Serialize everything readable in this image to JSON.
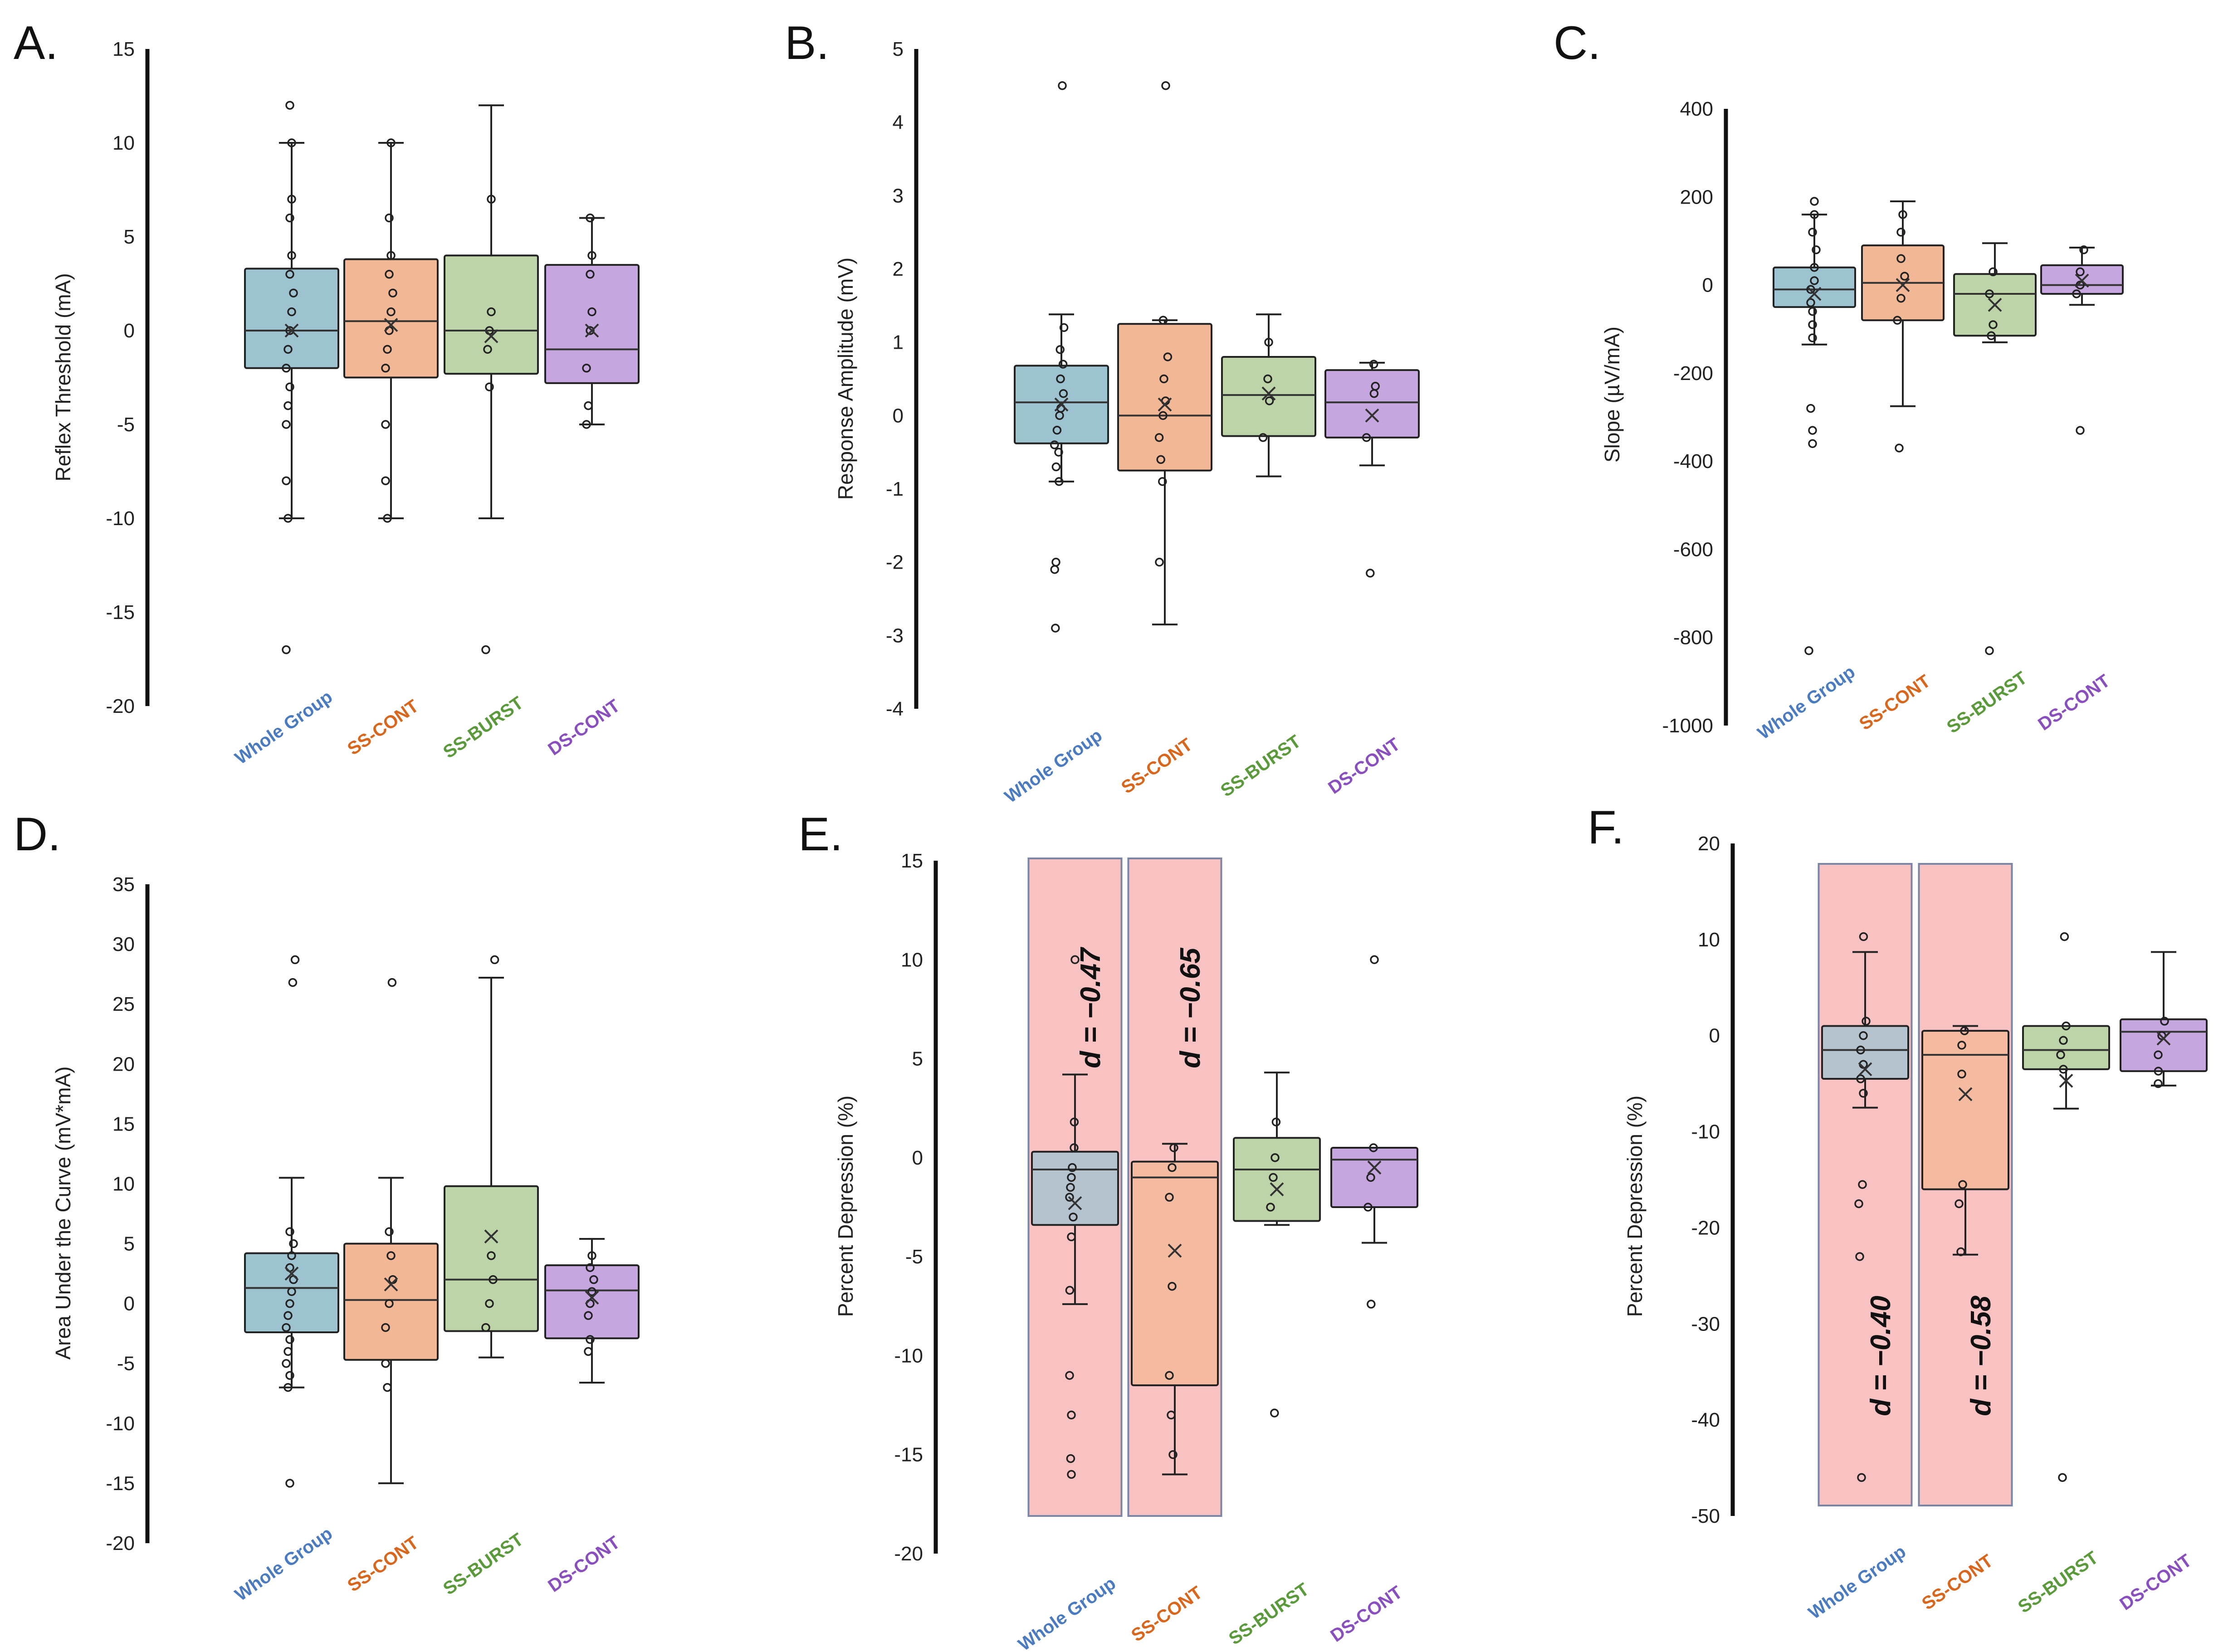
{
  "figure": {
    "categories": [
      "Whole Group",
      "SS-CONT",
      "SS-BURST",
      "DS-CONT"
    ],
    "colors": {
      "Whole Group": "#9dc3d1",
      "SS-CONT": "#f2b896",
      "SS-BURST": "#bcd4a8",
      "DS-CONT": "#c5a6de",
      "label_Whole Group": "#4a7bc1",
      "label_SS-CONT": "#d8661c",
      "label_SS-BURST": "#5a9a3a",
      "label_DS-CONT": "#8a4fbf",
      "highlight_fill": "#f9c2c2",
      "highlight_stroke": "#7b86a6",
      "box_stroke": "#222222"
    }
  },
  "chart_data": [
    {
      "panel": "A.",
      "type": "box",
      "ylabel": "Reflex Threshold  (mA)",
      "ylim": [
        -20,
        15
      ],
      "yticks": [
        15,
        10,
        5,
        0,
        -5,
        -10,
        -15,
        -20
      ],
      "groups": [
        {
          "name": "Whole Group",
          "q1": -2,
          "median": 0,
          "q3": 3.3,
          "mean": 0,
          "whisker_low": -10,
          "whisker_high": 10,
          "points": [
            12,
            10,
            7,
            6,
            4,
            3,
            2,
            1,
            0,
            -1,
            -2,
            -3,
            -4,
            -5,
            -8,
            -10,
            -17
          ]
        },
        {
          "name": "SS-CONT",
          "q1": -2.5,
          "median": 0.5,
          "q3": 3.8,
          "mean": 0.3,
          "whisker_low": -10,
          "whisker_high": 10,
          "points": [
            10,
            6,
            4,
            3,
            2,
            1,
            0,
            -1,
            -2,
            -5,
            -8,
            -10
          ]
        },
        {
          "name": "SS-BURST",
          "q1": -2.3,
          "median": 0,
          "q3": 4,
          "mean": -0.3,
          "whisker_low": -10,
          "whisker_high": 12,
          "points": [
            7,
            1,
            0,
            -1,
            -3,
            -17
          ]
        },
        {
          "name": "DS-CONT",
          "q1": -2.8,
          "median": -1,
          "q3": 3.5,
          "mean": 0,
          "whisker_low": -5,
          "whisker_high": 6,
          "points": [
            6,
            4,
            3,
            1,
            0,
            -2,
            -4,
            -5
          ]
        }
      ]
    },
    {
      "panel": "B.",
      "type": "box",
      "ylabel": "Response Amplitude  (mV)",
      "ylim": [
        -4,
        5
      ],
      "yticks": [
        5,
        4,
        3,
        2,
        1,
        0,
        -1,
        -2,
        -3,
        -4
      ],
      "groups": [
        {
          "name": "Whole Group",
          "q1": -0.38,
          "median": 0.18,
          "q3": 0.68,
          "mean": 0.15,
          "whisker_low": -0.9,
          "whisker_high": 1.38,
          "points": [
            4.5,
            1.2,
            0.9,
            0.7,
            0.5,
            0.3,
            0.1,
            0,
            -0.2,
            -0.4,
            -0.5,
            -0.7,
            -0.9,
            -2,
            -2.1,
            -2.9
          ]
        },
        {
          "name": "SS-CONT",
          "q1": -0.75,
          "median": 0,
          "q3": 1.25,
          "mean": 0.15,
          "whisker_low": -2.85,
          "whisker_high": 1.3,
          "points": [
            4.5,
            1.3,
            0.8,
            0.5,
            0.2,
            0,
            -0.3,
            -0.6,
            -0.9,
            -2
          ]
        },
        {
          "name": "SS-BURST",
          "q1": -0.28,
          "median": 0.28,
          "q3": 0.8,
          "mean": 0.3,
          "whisker_low": -0.83,
          "whisker_high": 1.38,
          "points": [
            1,
            0.5,
            0.2,
            -0.3
          ]
        },
        {
          "name": "DS-CONT",
          "q1": -0.3,
          "median": 0.18,
          "q3": 0.62,
          "mean": 0,
          "whisker_low": -0.68,
          "whisker_high": 0.72,
          "points": [
            0.7,
            0.4,
            0.3,
            -0.3,
            -2.15
          ]
        }
      ]
    },
    {
      "panel": "C.",
      "type": "box",
      "ylabel": "Slope  (µV/mA)",
      "ylim": [
        -1000,
        400
      ],
      "yticks": [
        400,
        200,
        0,
        -200,
        -400,
        -600,
        -800,
        -1000
      ],
      "groups": [
        {
          "name": "Whole Group",
          "q1": -50,
          "median": -10,
          "q3": 40,
          "mean": -20,
          "whisker_low": -135,
          "whisker_high": 160,
          "points": [
            190,
            160,
            120,
            80,
            40,
            10,
            -10,
            -40,
            -60,
            -90,
            -120,
            -280,
            -330,
            -360,
            -830
          ]
        },
        {
          "name": "SS-CONT",
          "q1": -80,
          "median": 5,
          "q3": 90,
          "mean": 0,
          "whisker_low": -275,
          "whisker_high": 190,
          "points": [
            160,
            120,
            60,
            20,
            -30,
            -80,
            -370
          ]
        },
        {
          "name": "SS-BURST",
          "q1": -115,
          "median": -20,
          "q3": 25,
          "mean": -45,
          "whisker_low": -130,
          "whisker_high": 95,
          "points": [
            30,
            -20,
            -90,
            -115,
            -830
          ]
        },
        {
          "name": "DS-CONT",
          "q1": -20,
          "median": 0,
          "q3": 45,
          "mean": 10,
          "whisker_low": -45,
          "whisker_high": 85,
          "points": [
            80,
            30,
            0,
            -20,
            -330
          ]
        }
      ]
    },
    {
      "panel": "D.",
      "type": "box",
      "ylabel": "Area Under the Curve  (mV*mA)",
      "ylim": [
        -20,
        35
      ],
      "yticks": [
        35,
        30,
        25,
        20,
        15,
        10,
        5,
        0,
        -5,
        -10,
        -15,
        -20
      ],
      "groups": [
        {
          "name": "Whole Group",
          "q1": -2.4,
          "median": 1.3,
          "q3": 4.2,
          "mean": 2.5,
          "whisker_low": -7,
          "whisker_high": 10.5,
          "points": [
            28.7,
            26.8,
            6,
            5,
            4,
            3,
            2,
            1,
            0,
            -1,
            -2,
            -3,
            -4,
            -5,
            -6,
            -7,
            -15
          ]
        },
        {
          "name": "SS-CONT",
          "q1": -4.7,
          "median": 0.3,
          "q3": 5,
          "mean": 1.6,
          "whisker_low": -15,
          "whisker_high": 10.5,
          "points": [
            26.8,
            6,
            4,
            2,
            0,
            -2,
            -5,
            -7
          ]
        },
        {
          "name": "SS-BURST",
          "q1": -2.3,
          "median": 2,
          "q3": 9.8,
          "mean": 5.6,
          "whisker_low": -4.5,
          "whisker_high": 27.2,
          "points": [
            28.7,
            4,
            2,
            0,
            -2
          ]
        },
        {
          "name": "DS-CONT",
          "q1": -2.9,
          "median": 1.1,
          "q3": 3.2,
          "mean": 0.5,
          "whisker_low": -6.6,
          "whisker_high": 5.4,
          "points": [
            4,
            3,
            2,
            1,
            0,
            -1,
            -3,
            -4
          ]
        }
      ]
    },
    {
      "panel": "E.",
      "type": "box",
      "ylabel": "Percent Depression (%)",
      "ylim": [
        -20,
        15
      ],
      "yticks": [
        15,
        10,
        5,
        0,
        -5,
        -10,
        -15,
        -20
      ],
      "highlight": [
        {
          "group": "Whole Group",
          "label": "d = −0.47"
        },
        {
          "group": "SS-CONT",
          "label": "d = −0.65"
        }
      ],
      "groups": [
        {
          "name": "Whole Group",
          "q1": -3.4,
          "median": -0.6,
          "q3": 0.3,
          "mean": -2.3,
          "whisker_low": -7.4,
          "whisker_high": 4.2,
          "points": [
            10,
            1.8,
            0.5,
            -0.5,
            -1,
            -1.5,
            -2,
            -3,
            -4,
            -6.7,
            -11,
            -13,
            -15.2,
            -16
          ]
        },
        {
          "name": "SS-CONT",
          "q1": -11.5,
          "median": -1,
          "q3": -0.2,
          "mean": -4.7,
          "whisker_low": -16,
          "whisker_high": 0.7,
          "points": [
            0.5,
            -0.5,
            -2,
            -6.5,
            -11,
            -13,
            -15
          ]
        },
        {
          "name": "SS-BURST",
          "q1": -3.2,
          "median": -0.6,
          "q3": 1,
          "mean": -1.6,
          "whisker_low": -3.4,
          "whisker_high": 4.3,
          "points": [
            1.8,
            0,
            -1,
            -2.5,
            -12.9
          ]
        },
        {
          "name": "DS-CONT",
          "q1": -2.5,
          "median": -0.1,
          "q3": 0.5,
          "mean": -0.5,
          "whisker_low": -4.3,
          "whisker_high": 0.5,
          "points": [
            10,
            0.5,
            -1,
            -2.5,
            -7.4
          ]
        }
      ]
    },
    {
      "panel": "F.",
      "type": "box",
      "ylabel": "Percent Depression (%)",
      "ylim": [
        -50,
        20
      ],
      "yticks": [
        20,
        10,
        0,
        -10,
        -20,
        -30,
        -40,
        -50
      ],
      "highlight": [
        {
          "group": "Whole Group",
          "label": "d = −0.40"
        },
        {
          "group": "SS-CONT",
          "label": "d = −0.58"
        }
      ],
      "groups": [
        {
          "name": "Whole Group",
          "q1": -4.5,
          "median": -1.5,
          "q3": 1,
          "mean": -3.5,
          "whisker_low": -7.5,
          "whisker_high": 8.7,
          "points": [
            10.3,
            1.5,
            0,
            -1.5,
            -3,
            -4.5,
            -6,
            -15.5,
            -17.5,
            -23,
            -46
          ]
        },
        {
          "name": "SS-CONT",
          "q1": -16,
          "median": -2,
          "q3": 0.5,
          "mean": -6.1,
          "whisker_low": -22.8,
          "whisker_high": 1,
          "points": [
            0.5,
            -1,
            -4,
            -15.5,
            -17.5,
            -22.5
          ]
        },
        {
          "name": "SS-BURST",
          "q1": -3.5,
          "median": -1.5,
          "q3": 1,
          "mean": -4.7,
          "whisker_low": -7.6,
          "whisker_high": 1,
          "points": [
            10.3,
            1,
            -0.5,
            -2,
            -3.5,
            -46
          ]
        },
        {
          "name": "DS-CONT",
          "q1": -3.7,
          "median": 0.4,
          "q3": 1.7,
          "mean": -0.3,
          "whisker_low": -5.2,
          "whisker_high": 8.7,
          "points": [
            1.5,
            0,
            -2,
            -3.7,
            -5
          ]
        }
      ]
    }
  ]
}
